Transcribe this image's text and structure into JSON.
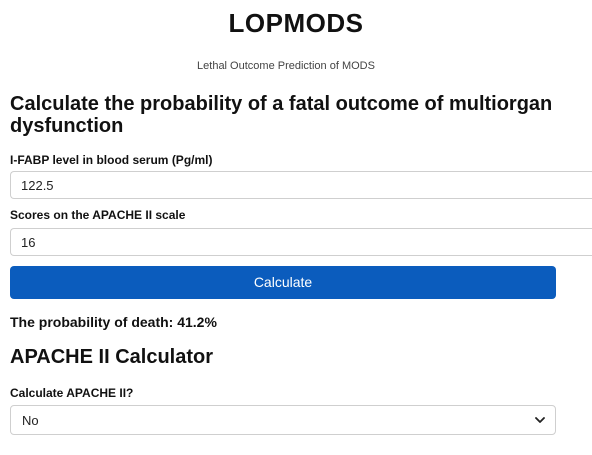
{
  "header": {
    "title": "LOPMODS",
    "subtitle": "Lethal Outcome Prediction of MODS"
  },
  "main": {
    "heading": "Calculate the probability of a fatal outcome of multiorgan dysfunction",
    "ifabp": {
      "label": "I-FABP level in blood serum (Pg/ml)",
      "value": "122.5"
    },
    "apache_score": {
      "label": "Scores on the APACHE II scale",
      "value": "16"
    },
    "calculate_label": "Calculate",
    "result": "The probability of death: 41.2%"
  },
  "apache_calculator": {
    "heading": "APACHE II Calculator",
    "select_label": "Calculate APACHE II?",
    "selected": "No",
    "chevron_icon": "chevron-down-icon"
  },
  "colors": {
    "accent": "#0b5cbd",
    "button_text": "#ffffff",
    "border": "#cfcfcf"
  }
}
